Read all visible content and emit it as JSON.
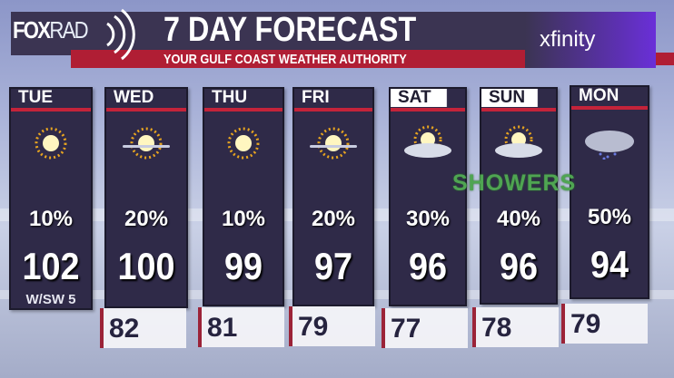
{
  "header": {
    "logo_fox": "FOX",
    "logo_rad": "RAD",
    "title": "7 DAY FORECAST",
    "subtitle": "YOUR GULF COAST WEATHER AUTHORITY",
    "sponsor": "xfinity"
  },
  "colors": {
    "panel": "#2f2a48",
    "accent_red": "#c4233a",
    "header": "#3b3452",
    "showers_text": "#4fa552"
  },
  "annotation": "SHOWERS",
  "days": [
    {
      "day": "TUE",
      "icon": "sunny-icon",
      "precip": "10%",
      "high": "102",
      "low": "",
      "wind": "W/SW 5"
    },
    {
      "day": "WED",
      "icon": "mostly-sunny-icon",
      "precip": "20%",
      "high": "100",
      "low": "82"
    },
    {
      "day": "THU",
      "icon": "sunny-icon",
      "precip": "10%",
      "high": "99",
      "low": "81"
    },
    {
      "day": "FRI",
      "icon": "mostly-sunny-icon",
      "precip": "20%",
      "high": "97",
      "low": "79"
    },
    {
      "day": "SAT",
      "icon": "partly-cloudy-icon",
      "precip": "30%",
      "high": "96",
      "low": "77"
    },
    {
      "day": "SUN",
      "icon": "partly-cloudy-icon",
      "precip": "40%",
      "high": "96",
      "low": "78"
    },
    {
      "day": "MON",
      "icon": "rain-showers-icon",
      "precip": "50%",
      "high": "94",
      "low": "79"
    }
  ]
}
